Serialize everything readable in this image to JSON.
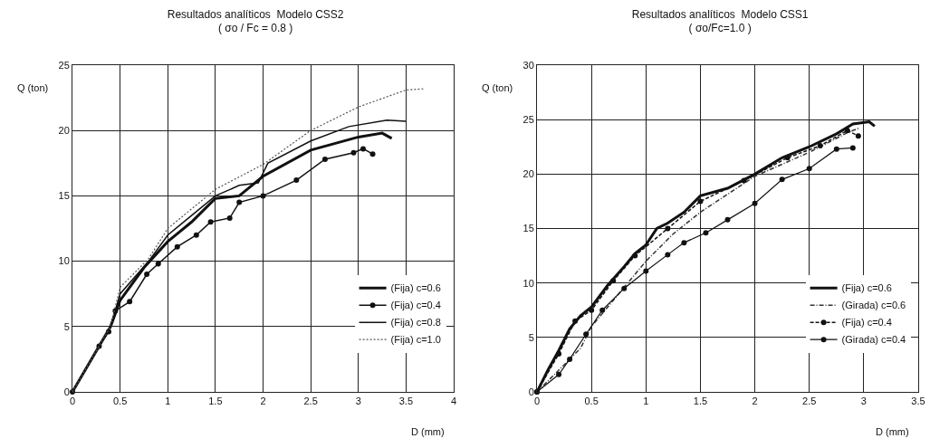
{
  "chart_data": [
    {
      "type": "line",
      "title": "Resultados analíticos  Modelo CSS2",
      "subtitle": "( σo / Fc = 0.8 )",
      "xlabel": "D (mm)",
      "ylabel": "Q (ton)",
      "xlim": [
        0,
        4
      ],
      "xticks": [
        0,
        0.5,
        1,
        1.5,
        2,
        2.5,
        3,
        3.5,
        4
      ],
      "ylim": [
        0,
        25
      ],
      "yticks": [
        0,
        5,
        10,
        15,
        20,
        25
      ],
      "grid": true,
      "legend": "bottom right",
      "series": [
        {
          "name": "(Fija) c=0.6",
          "color": "#111111",
          "marker": "none",
          "line_style": "solid",
          "x": [
            0,
            0.4,
            0.5,
            0.75,
            1,
            1.25,
            1.5,
            1.75,
            2,
            2.5,
            3,
            3.25,
            3.35
          ],
          "values": [
            0,
            5,
            7,
            9.5,
            11.5,
            13,
            14.8,
            15,
            16.5,
            18.5,
            19.5,
            19.8,
            19.4
          ]
        },
        {
          "name": "(Fija) c=0.4",
          "color": "#111111",
          "marker": "circle",
          "line_style": "solid",
          "x": [
            0,
            0.28,
            0.38,
            0.45,
            0.6,
            0.78,
            0.9,
            1.1,
            1.3,
            1.45,
            1.65,
            1.75,
            2,
            2.35,
            2.65,
            2.95,
            3.05,
            3.15
          ],
          "values": [
            0,
            3.5,
            4.6,
            6.2,
            6.9,
            9,
            9.8,
            11.1,
            12,
            13,
            13.3,
            14.5,
            15,
            16.2,
            17.8,
            18.3,
            18.6,
            18.2
          ]
        },
        {
          "name": "(Fija) c=0.8",
          "color": "#111111",
          "marker": "none",
          "line_style": "solid",
          "x": [
            0,
            0.4,
            0.5,
            0.8,
            1,
            1.25,
            1.5,
            1.75,
            1.95,
            2.05,
            2.5,
            2.9,
            3.3,
            3.5
          ],
          "values": [
            0,
            5,
            7.5,
            10,
            12,
            13.5,
            15,
            15.8,
            16,
            17.5,
            19.2,
            20.3,
            20.8,
            20.7
          ]
        },
        {
          "name": "(Fija) c=1.0",
          "color": "#555555",
          "marker": "none",
          "line_style": "dotted",
          "x": [
            0,
            0.4,
            0.5,
            0.8,
            1,
            1.5,
            2,
            2.5,
            3,
            3.5,
            3.7
          ],
          "values": [
            0,
            5,
            8,
            10.2,
            12.5,
            15.5,
            17.4,
            20,
            21.8,
            23.1,
            23.2
          ]
        }
      ]
    },
    {
      "type": "line",
      "title": "Resultados analíticos  Modelo CSS1",
      "subtitle": "( σo/Fc=1.0 )",
      "xlabel": "D (mm)",
      "ylabel": "Q (ton)",
      "xlim": [
        0,
        3.5
      ],
      "xticks": [
        0,
        0.5,
        1,
        1.5,
        2,
        2.5,
        3,
        3.5
      ],
      "ylim": [
        0,
        30
      ],
      "yticks": [
        0,
        5,
        10,
        15,
        20,
        25,
        30
      ],
      "grid": true,
      "legend": "bottom right",
      "series": [
        {
          "name": "(Fija) c=0.6",
          "color": "#111111",
          "marker": "none",
          "line_style": "solid",
          "x": [
            0,
            0.1,
            0.2,
            0.3,
            0.4,
            0.5,
            0.65,
            0.8,
            0.9,
            1,
            1.1,
            1.2,
            1.35,
            1.5,
            1.75,
            2,
            2.25,
            2.5,
            2.75,
            2.9,
            3.05,
            3.1
          ],
          "values": [
            0,
            2,
            3.8,
            5.8,
            7,
            7.8,
            9.8,
            11.5,
            12.7,
            13.5,
            15,
            15.5,
            16.5,
            18,
            18.7,
            20,
            21.5,
            22.5,
            23.7,
            24.6,
            24.8,
            24.4
          ]
        },
        {
          "name": "(Girada) c=0.6",
          "color": "#333333",
          "marker": "none",
          "line_style": "dashdot",
          "x": [
            0,
            0.2,
            0.4,
            0.5,
            0.75,
            1,
            1.25,
            1.5,
            2,
            2.5,
            2.85,
            2.95
          ],
          "values": [
            0,
            2,
            4,
            6,
            9,
            12,
            14.5,
            16.5,
            19.8,
            22,
            23.8,
            24.2
          ]
        },
        {
          "name": "(Fija) c=0.4",
          "color": "#111111",
          "marker": "circle",
          "line_style": "dashed",
          "x": [
            0,
            0.2,
            0.35,
            0.5,
            0.7,
            0.9,
            1.2,
            1.5,
            1.9,
            2.3,
            2.6,
            2.85,
            2.95
          ],
          "values": [
            0,
            3.5,
            6.5,
            7.5,
            10.2,
            12.5,
            15,
            17.5,
            19.4,
            21.5,
            22.6,
            24,
            23.5
          ]
        },
        {
          "name": "(Girada) c=0.4",
          "color": "#111111",
          "marker": "circle",
          "line_style": "solid",
          "x": [
            0,
            0.2,
            0.3,
            0.45,
            0.6,
            0.8,
            1,
            1.2,
            1.35,
            1.55,
            1.75,
            2,
            2.25,
            2.5,
            2.75,
            2.9
          ],
          "values": [
            0,
            1.6,
            3,
            5.3,
            7.5,
            9.5,
            11.1,
            12.6,
            13.7,
            14.6,
            15.8,
            17.3,
            19.5,
            20.5,
            22.3,
            22.4
          ]
        }
      ]
    }
  ]
}
